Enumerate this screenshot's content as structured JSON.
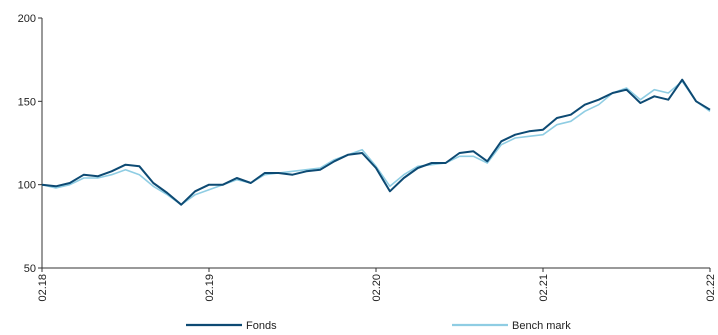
{
  "chart_data": {
    "type": "line",
    "title": "",
    "xlabel": "",
    "ylabel": "",
    "ylim": [
      50,
      200
    ],
    "yticks": [
      50,
      100,
      150,
      200
    ],
    "xlim": [
      0,
      48
    ],
    "xticks": [
      {
        "x": 0,
        "label": "02.18"
      },
      {
        "x": 12,
        "label": "02.19"
      },
      {
        "x": 24,
        "label": "02.20"
      },
      {
        "x": 36,
        "label": "02.21"
      },
      {
        "x": 48,
        "label": "02.22"
      }
    ],
    "grid": false,
    "legend_position": "bottom",
    "x": [
      0,
      1,
      2,
      3,
      4,
      5,
      6,
      7,
      8,
      9,
      10,
      11,
      12,
      13,
      14,
      15,
      16,
      17,
      18,
      19,
      20,
      21,
      22,
      23,
      24,
      25,
      26,
      27,
      28,
      29,
      30,
      31,
      32,
      33,
      34,
      35,
      36,
      37,
      38,
      39,
      40,
      41,
      42,
      43,
      44,
      45,
      46,
      47,
      48
    ],
    "series": [
      {
        "name": "Fonds",
        "color": "#0d4a73",
        "values": [
          100,
          99,
          101,
          106,
          105,
          108,
          112,
          111,
          101,
          95,
          88,
          96,
          100,
          100,
          104,
          101,
          107,
          107,
          106,
          108,
          109,
          114,
          118,
          119,
          110,
          96,
          104,
          110,
          113,
          113,
          119,
          120,
          114,
          126,
          130,
          132,
          133,
          140,
          142,
          148,
          151,
          155,
          157,
          149,
          153,
          151,
          163,
          150,
          145
        ]
      },
      {
        "name": "Bench mark",
        "color": "#8fcde3",
        "values": [
          100,
          98,
          100,
          104,
          104,
          106,
          109,
          106,
          99,
          94,
          88,
          94,
          97,
          100,
          103,
          101,
          106,
          107,
          108,
          109,
          110,
          115,
          118,
          121,
          111,
          99,
          106,
          111,
          112,
          113,
          117,
          117,
          113,
          124,
          128,
          129,
          130,
          136,
          138,
          144,
          148,
          155,
          158,
          151,
          157,
          155,
          162,
          150,
          144
        ]
      }
    ]
  }
}
